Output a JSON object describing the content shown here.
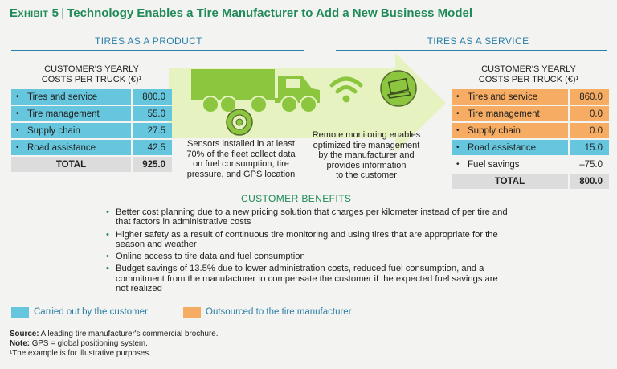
{
  "title": {
    "exhibit": "Exhibit 5",
    "separator": "|",
    "text": "Technology Enables a Tire Manufacturer to Add a New Business Model"
  },
  "sections": {
    "left": "TIRES AS A PRODUCT",
    "right": "TIRES AS A SERVICE"
  },
  "left_table": {
    "title_line1": "CUSTOMER'S YEARLY",
    "title_line2": "COSTS PER TRUCK (€)¹",
    "rows": [
      {
        "label": "Tires and service",
        "value": "800.0",
        "type": "customer"
      },
      {
        "label": "Tire management",
        "value": "55.0",
        "type": "customer"
      },
      {
        "label": "Supply chain",
        "value": "27.5",
        "type": "customer"
      },
      {
        "label": "Road assistance",
        "value": "42.5",
        "type": "customer"
      }
    ],
    "total_label": "TOTAL",
    "total_value": "925.0"
  },
  "right_table": {
    "title_line1": "CUSTOMER'S YEARLY",
    "title_line2": "COSTS PER TRUCK (€)¹",
    "rows": [
      {
        "label": "Tires and service",
        "value": "860.0",
        "type": "manufacturer"
      },
      {
        "label": "Tire management",
        "value": "0.0",
        "type": "manufacturer"
      },
      {
        "label": "Supply chain",
        "value": "0.0",
        "type": "manufacturer"
      },
      {
        "label": "Road assistance",
        "value": "15.0",
        "type": "customer"
      },
      {
        "label": "Fuel savings",
        "value": "–75.0",
        "type": "none"
      }
    ],
    "total_label": "TOTAL",
    "total_value": "800.0"
  },
  "captions": {
    "sensors": [
      "Sensors installed in at least",
      "70% of the fleet collect data",
      "on fuel consumption, tire",
      "pressure, and GPS location"
    ],
    "monitoring": [
      "Remote monitoring enables",
      "optimized tire management",
      "by the manufacturer and",
      "provides information",
      "to the customer"
    ]
  },
  "icons": [
    "truck-icon",
    "tire-sensor-icon",
    "wifi-icon",
    "laptop-icon"
  ],
  "benefits": {
    "title": "CUSTOMER BENEFITS",
    "items": [
      "Better cost planning due to a new pricing solution that charges per kilometer instead of per tire and that factors in administrative costs",
      "Higher safety as a result of continuous tire monitoring and using tires that are appropriate for the season and weather",
      "Online access to tire data and fuel consumption",
      "Budget savings of 13.5% due to lower administration costs, reduced fuel consumption, and a commitment from the manufacturer to compensate the customer if the expected fuel savings are not realized"
    ]
  },
  "legend": {
    "customer": {
      "label": "Carried out by the customer",
      "color": "#66c6dd"
    },
    "manufacturer": {
      "label": "Outsourced to the tire manufacturer",
      "color": "#f6ac62"
    }
  },
  "footer": {
    "source_label": "Source:",
    "source_text": " A leading tire manufacturer's commercial brochure.",
    "note_label": "Note:",
    "note_text": " GPS = global positioning system.",
    "footnote": "¹The example is for illustrative purposes."
  },
  "colors": {
    "title": "#1f8a58",
    "section": "#2a7fa8",
    "arrow": "#e6f2c0",
    "icon": "#8cc63f",
    "total": "#dcdcdc"
  }
}
